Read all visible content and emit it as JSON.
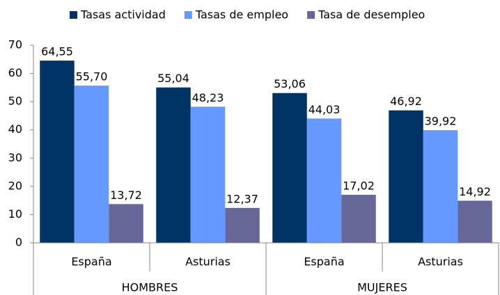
{
  "chart_data": {
    "type": "bar",
    "categories": [
      "España",
      "Asturias",
      "España",
      "Asturias"
    ],
    "groups": [
      "HOMBRES",
      "MUJERES"
    ],
    "series": [
      {
        "name": "Tasas actividad",
        "color": "#003366",
        "values": [
          64.55,
          55.04,
          53.06,
          46.92
        ],
        "value_labels": [
          "64,55",
          "55,04",
          "53,06",
          "46,92"
        ]
      },
      {
        "name": "Tasas de empleo",
        "color": "#6699ff",
        "values": [
          55.7,
          48.23,
          44.03,
          39.92
        ],
        "value_labels": [
          "55,70",
          "48,23",
          "44,03",
          "39,92"
        ]
      },
      {
        "name": "Tasa de desempleo",
        "color": "#666699",
        "values": [
          13.72,
          12.37,
          17.02,
          14.92
        ],
        "value_labels": [
          "13,72",
          "12,37",
          "17,02",
          "14,92"
        ]
      }
    ],
    "ylim": [
      0,
      70
    ],
    "yticks": [
      0,
      10,
      20,
      30,
      40,
      50,
      60,
      70
    ],
    "legend": "top",
    "grid": false
  }
}
